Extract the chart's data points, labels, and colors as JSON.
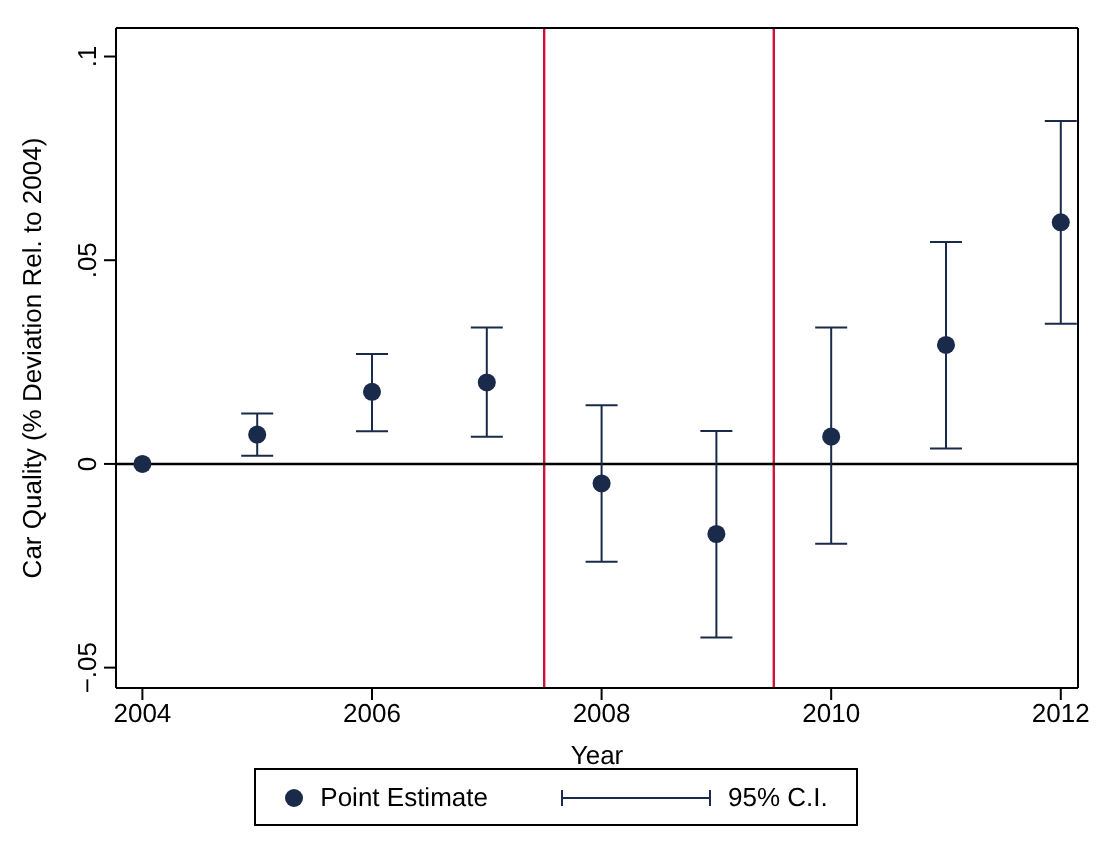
{
  "chart_data": {
    "type": "scatter",
    "xlabel": "Year",
    "ylabel": "Car Quality (% Deviation Rel. to 2004)",
    "x": [
      2004,
      2005,
      2006,
      2007,
      2008,
      2009,
      2010,
      2011,
      2012
    ],
    "series": [
      {
        "name": "Point Estimate",
        "color": "#1a2a4a",
        "values": [
          0,
          0.0072,
          0.0177,
          0.02,
          -0.0048,
          -0.0172,
          0.0067,
          0.0292,
          0.0593
        ],
        "errors": [
          null,
          [
            0.002,
            0.0124
          ],
          [
            0.008,
            0.027
          ],
          [
            0.0067,
            0.0335
          ],
          [
            -0.024,
            0.0144
          ],
          [
            -0.0426,
            0.0081
          ],
          [
            -0.0196,
            0.0335
          ],
          [
            0.0038,
            0.0545
          ],
          [
            0.0344,
            0.0842
          ]
        ]
      }
    ],
    "xlim": [
      2003.77,
      2012.15
    ],
    "xticks": [
      2004,
      2006,
      2008,
      2010,
      2012
    ],
    "ylim": [
      -0.055,
      0.107
    ],
    "yticks": [
      {
        "value": -0.05,
        "label": "−.05"
      },
      {
        "value": 0,
        "label": "0"
      },
      {
        "value": 0.05,
        "label": ".05"
      },
      {
        "value": 0.1,
        "label": ".1"
      }
    ],
    "ref_lines": [
      {
        "axis": "x",
        "value": 2007.5,
        "color": "#d0103a"
      },
      {
        "axis": "x",
        "value": 2009.5,
        "color": "#d0103a"
      },
      {
        "axis": "y",
        "value": 0,
        "color": "#000000"
      }
    ],
    "annotations": [
      "95% C.I."
    ],
    "marker": "circle",
    "grid": false,
    "legend": "bottom"
  }
}
